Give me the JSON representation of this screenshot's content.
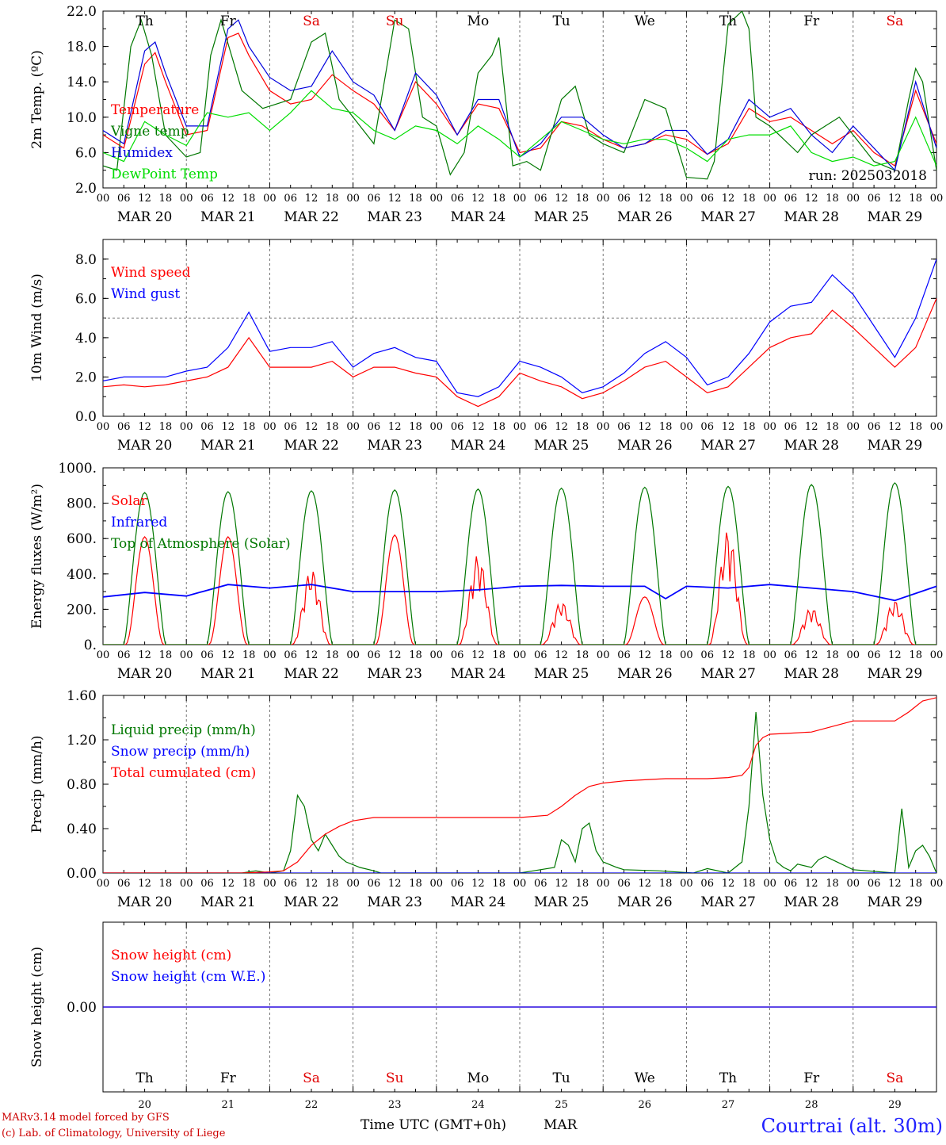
{
  "meta": {
    "run_label": "run: 2025032018",
    "credit_line1": "MARv3.14 model forced by GFS",
    "credit_line2": "(c) Lab. of Climatology, University of Liege",
    "xlabel_main": "Time UTC (GMT+0h)",
    "xlabel_month": "MAR",
    "station": "Courtrai (alt. 30m)"
  },
  "axis": {
    "hour_ticks": [
      "00",
      "06",
      "12",
      "18"
    ],
    "end_tick": "00",
    "dates": [
      "MAR 20",
      "MAR 21",
      "MAR 22",
      "MAR 23",
      "MAR 24",
      "MAR 25",
      "MAR 26",
      "MAR 27",
      "MAR 28",
      "MAR 29"
    ],
    "days": [
      {
        "label": "Th",
        "color": "#000000"
      },
      {
        "label": "Fr",
        "color": "#000000"
      },
      {
        "label": "Sa",
        "color": "#e00000"
      },
      {
        "label": "Su",
        "color": "#e00000"
      },
      {
        "label": "Mo",
        "color": "#000000"
      },
      {
        "label": "Tu",
        "color": "#000000"
      },
      {
        "label": "We",
        "color": "#000000"
      },
      {
        "label": "Th",
        "color": "#000000"
      },
      {
        "label": "Fr",
        "color": "#000000"
      },
      {
        "label": "Sa",
        "color": "#e00000"
      }
    ],
    "day_numbers": [
      "20",
      "21",
      "22",
      "23",
      "24",
      "25",
      "26",
      "27",
      "28",
      "29"
    ]
  },
  "chart_data": [
    {
      "type": "line",
      "ylabel": "2m Temp. (ºC)",
      "ylim": [
        2,
        22
      ],
      "yticks": [
        "2.0",
        "6.0",
        "10.0",
        "14.0",
        "18.0",
        "22.0"
      ],
      "ytick_values": [
        2,
        6,
        10,
        14,
        18,
        22
      ],
      "x_unit": "hours since MAR 20 00 UTC",
      "x_range": [
        0,
        240
      ],
      "series": [
        {
          "name": "Temperature",
          "color": "#ff0000",
          "x": [
            0,
            6,
            12,
            15,
            18,
            24,
            30,
            36,
            39,
            42,
            48,
            54,
            60,
            66,
            72,
            78,
            84,
            90,
            96,
            102,
            108,
            114,
            120,
            126,
            132,
            138,
            144,
            150,
            156,
            162,
            168,
            174,
            180,
            186,
            192,
            198,
            204,
            210,
            216,
            222,
            228,
            234,
            240
          ],
          "y": [
            8,
            6.5,
            16,
            17.3,
            14,
            8,
            8.5,
            19,
            19.5,
            17,
            13,
            11.5,
            12,
            14.8,
            13,
            11.5,
            8.5,
            14,
            11.5,
            8,
            11.5,
            11,
            6,
            6.5,
            9.5,
            9,
            7.5,
            6.5,
            7,
            8,
            7.5,
            5.8,
            7,
            11,
            9.5,
            10,
            8.5,
            7,
            8.5,
            6,
            4.5,
            13,
            7
          ]
        },
        {
          "name": "Vigne temp",
          "color": "#007700",
          "x": [
            0,
            4,
            8,
            11,
            14,
            18,
            24,
            28,
            31,
            34,
            37,
            40,
            46,
            54,
            60,
            64,
            68,
            72,
            78,
            84,
            88,
            92,
            96,
            100,
            104,
            108,
            110,
            112,
            114,
            118,
            122,
            126,
            132,
            136,
            140,
            144,
            150,
            156,
            162,
            168,
            174,
            176,
            180,
            184,
            186,
            188,
            192,
            200,
            204,
            208,
            212,
            216,
            222,
            228,
            232,
            234,
            236,
            238,
            240
          ],
          "y": [
            4.5,
            4,
            18,
            21,
            17,
            8,
            5.5,
            6,
            17,
            21,
            17,
            13,
            11,
            12,
            18.5,
            19.5,
            12,
            10,
            7,
            21,
            20,
            10,
            9,
            3.5,
            6,
            15,
            16,
            17,
            19,
            4.5,
            5,
            4,
            12,
            13.5,
            8,
            7,
            6,
            12,
            11,
            3.2,
            3,
            5,
            20.5,
            22,
            20,
            10,
            9,
            6,
            8,
            9,
            10,
            8,
            5,
            4,
            12,
            15.5,
            14,
            9,
            4
          ]
        },
        {
          "name": "Humidex",
          "color": "#0000dd",
          "x": [
            0,
            6,
            12,
            15,
            18,
            24,
            30,
            36,
            39,
            42,
            48,
            54,
            60,
            66,
            72,
            78,
            84,
            90,
            96,
            102,
            108,
            114,
            120,
            126,
            132,
            138,
            144,
            150,
            156,
            162,
            168,
            174,
            180,
            186,
            192,
            198,
            204,
            210,
            216,
            222,
            228,
            234,
            240
          ],
          "y": [
            8.5,
            7,
            17.5,
            18.5,
            15,
            9,
            9,
            20,
            21,
            18,
            14.5,
            13,
            13.5,
            17.5,
            14,
            12.5,
            8.5,
            15,
            12.5,
            8,
            12,
            12,
            5.5,
            7,
            10,
            10,
            8,
            6.5,
            7,
            8.5,
            8.5,
            5.8,
            7.5,
            12,
            10,
            11,
            8,
            6,
            9,
            6.5,
            4,
            14,
            6.5
          ]
        },
        {
          "name": "DewPoint Temp",
          "color": "#00dd00",
          "x": [
            0,
            6,
            12,
            18,
            24,
            30,
            36,
            42,
            48,
            54,
            60,
            66,
            72,
            78,
            84,
            90,
            96,
            102,
            108,
            114,
            120,
            126,
            132,
            138,
            144,
            150,
            156,
            162,
            168,
            174,
            180,
            186,
            192,
            198,
            204,
            210,
            216,
            222,
            228,
            234,
            240
          ],
          "y": [
            6,
            5,
            9.5,
            8,
            6.8,
            10.5,
            10,
            10.5,
            8.5,
            10.5,
            13,
            11,
            10.5,
            8.5,
            7.5,
            9,
            8.5,
            7,
            9,
            7.5,
            5.5,
            7.5,
            9.5,
            8.5,
            7.5,
            7,
            7.5,
            7.5,
            6.5,
            5,
            7.5,
            8,
            8,
            9,
            6,
            5,
            5.5,
            4.5,
            5,
            10,
            4.5
          ]
        }
      ],
      "legend": [
        "Temperature",
        "Vigne temp",
        "Humidex",
        "DewPoint Temp"
      ],
      "legend_colors": [
        "#ff0000",
        "#007700",
        "#0000dd",
        "#00dd00"
      ],
      "legend_placement": "left"
    },
    {
      "type": "line",
      "ylabel": "10m Wind (m/s)",
      "ylim": [
        0,
        9
      ],
      "yticks": [
        "0.0",
        "2.0",
        "4.0",
        "6.0",
        "8.0"
      ],
      "ytick_values": [
        0,
        2,
        4,
        6,
        8
      ],
      "reference_line": 5,
      "x_unit": "hours since MAR 20 00 UTC",
      "x_range": [
        0,
        240
      ],
      "series": [
        {
          "name": "Wind speed",
          "color": "#ff0000",
          "x": [
            0,
            6,
            12,
            18,
            24,
            30,
            36,
            42,
            48,
            54,
            60,
            66,
            72,
            78,
            84,
            90,
            96,
            102,
            108,
            114,
            120,
            126,
            132,
            138,
            144,
            150,
            156,
            162,
            168,
            174,
            180,
            186,
            192,
            198,
            204,
            210,
            216,
            222,
            228,
            234,
            240
          ],
          "y": [
            1.5,
            1.6,
            1.5,
            1.6,
            1.8,
            2,
            2.5,
            4,
            2.5,
            2.5,
            2.5,
            2.8,
            2,
            2.5,
            2.5,
            2.2,
            2,
            1,
            0.5,
            1,
            2.2,
            1.8,
            1.5,
            0.9,
            1.2,
            1.8,
            2.5,
            2.8,
            2,
            1.2,
            1.5,
            2.5,
            3.5,
            4,
            4.2,
            5.4,
            4.5,
            3.5,
            2.5,
            3.5,
            6
          ]
        },
        {
          "name": "Wind gust",
          "color": "#0000ff",
          "x": [
            0,
            6,
            12,
            18,
            24,
            30,
            36,
            42,
            48,
            54,
            60,
            66,
            72,
            78,
            84,
            90,
            96,
            102,
            108,
            114,
            120,
            126,
            132,
            138,
            144,
            150,
            156,
            162,
            168,
            174,
            180,
            186,
            192,
            198,
            204,
            210,
            216,
            222,
            228,
            234,
            240
          ],
          "y": [
            1.8,
            2,
            2,
            2,
            2.3,
            2.5,
            3.5,
            5.3,
            3.3,
            3.5,
            3.5,
            3.8,
            2.5,
            3.2,
            3.5,
            3,
            2.8,
            1.2,
            1,
            1.5,
            2.8,
            2.5,
            2,
            1.2,
            1.5,
            2.2,
            3.2,
            3.8,
            3,
            1.6,
            2,
            3.2,
            4.8,
            5.6,
            5.8,
            7.2,
            6.2,
            4.6,
            3,
            5,
            8
          ]
        }
      ],
      "legend": [
        "Wind speed",
        "Wind gust"
      ],
      "legend_colors": [
        "#ff0000",
        "#0000ff"
      ],
      "legend_placement": "left"
    },
    {
      "type": "line",
      "ylabel": "Energy fluxes (W/m²)",
      "ylim": [
        0,
        1000
      ],
      "yticks": [
        "0.",
        "200.",
        "400.",
        "600.",
        "800.",
        "1000."
      ],
      "ytick_values": [
        0,
        200,
        400,
        600,
        800,
        1000
      ],
      "x_unit": "hours since MAR 20 00 UTC",
      "x_range": [
        0,
        240
      ],
      "series": [
        {
          "name": "Solar",
          "color": "#ff0000",
          "peaks": [
            610,
            610,
            430,
            620,
            510,
            245,
            270,
            650,
            210,
            250
          ]
        },
        {
          "name": "Infrared",
          "color": "#0000ff",
          "x": [
            0,
            12,
            24,
            36,
            48,
            60,
            72,
            84,
            96,
            108,
            120,
            132,
            144,
            156,
            162,
            168,
            180,
            192,
            204,
            216,
            228,
            240
          ],
          "y": [
            270,
            295,
            275,
            340,
            320,
            340,
            300,
            300,
            300,
            310,
            330,
            335,
            330,
            330,
            260,
            330,
            320,
            340,
            320,
            300,
            250,
            330
          ]
        },
        {
          "name": "Top of Atmosphere (Solar)",
          "color": "#007700",
          "peaks": [
            860,
            865,
            870,
            875,
            880,
            885,
            890,
            895,
            905,
            915
          ]
        }
      ],
      "legend": [
        "Solar",
        "Infrared",
        "Top of Atmosphere (Solar)"
      ],
      "legend_colors": [
        "#ff0000",
        "#0000ff",
        "#007700"
      ],
      "legend_placement": "left"
    },
    {
      "type": "line",
      "ylabel": "Precip (mm/h)",
      "ylim": [
        0,
        1.6
      ],
      "yticks": [
        "0.00",
        "0.40",
        "0.80",
        "1.20",
        "1.60"
      ],
      "ytick_values": [
        0,
        0.4,
        0.8,
        1.2,
        1.6
      ],
      "x_unit": "hours since MAR 20 00 UTC",
      "x_range": [
        0,
        240
      ],
      "series": [
        {
          "name": "Liquid precip (mm/h)",
          "color": "#007700",
          "x": [
            0,
            40,
            44,
            48,
            52,
            54,
            56,
            58,
            60,
            62,
            64,
            66,
            68,
            70,
            74,
            78,
            80,
            120,
            124,
            130,
            132,
            134,
            136,
            138,
            140,
            142,
            144,
            148,
            150,
            160,
            170,
            174,
            180,
            184,
            186,
            188,
            190,
            192,
            194,
            196,
            198,
            200,
            204,
            206,
            208,
            210,
            216,
            228,
            230,
            232,
            234,
            236,
            238,
            240
          ],
          "y": [
            0,
            0,
            0.02,
            0,
            0.02,
            0.2,
            0.7,
            0.6,
            0.3,
            0.2,
            0.35,
            0.25,
            0.15,
            0.1,
            0.05,
            0.02,
            0,
            0,
            0.02,
            0.05,
            0.3,
            0.25,
            0.1,
            0.4,
            0.45,
            0.2,
            0.1,
            0.05,
            0.03,
            0.02,
            0,
            0.04,
            0,
            0.1,
            0.6,
            1.45,
            0.7,
            0.3,
            0.1,
            0.05,
            0.02,
            0.08,
            0.05,
            0.12,
            0.15,
            0.12,
            0.03,
            0,
            0.58,
            0.05,
            0.2,
            0.25,
            0.15,
            0
          ]
        },
        {
          "name": "Snow precip (mm/h)",
          "color": "#0000ff",
          "x": [
            0,
            240
          ],
          "y": [
            0,
            0
          ]
        },
        {
          "name": "Total cumulated (cm)",
          "color": "#ff0000",
          "x": [
            0,
            40,
            48,
            52,
            56,
            60,
            64,
            68,
            72,
            78,
            84,
            96,
            108,
            120,
            128,
            132,
            136,
            140,
            144,
            150,
            156,
            162,
            168,
            174,
            180,
            184,
            186,
            188,
            190,
            192,
            198,
            204,
            210,
            216,
            222,
            228,
            232,
            234,
            236,
            240
          ],
          "y": [
            0,
            0,
            0.01,
            0.02,
            0.1,
            0.25,
            0.35,
            0.42,
            0.47,
            0.5,
            0.5,
            0.5,
            0.5,
            0.5,
            0.52,
            0.6,
            0.7,
            0.78,
            0.81,
            0.83,
            0.84,
            0.85,
            0.85,
            0.85,
            0.86,
            0.88,
            0.95,
            1.15,
            1.22,
            1.25,
            1.26,
            1.27,
            1.32,
            1.37,
            1.37,
            1.37,
            1.45,
            1.5,
            1.55,
            1.58
          ]
        }
      ],
      "legend": [
        "Liquid precip (mm/h)",
        "Snow precip (mm/h)",
        "Total cumulated (cm)"
      ],
      "legend_colors": [
        "#007700",
        "#0000ff",
        "#ff0000"
      ],
      "legend_placement": "left"
    },
    {
      "type": "line",
      "ylabel": "Snow height (cm)",
      "ylim": [
        -1,
        1
      ],
      "yticks": [
        "0.00"
      ],
      "ytick_values": [
        0
      ],
      "x_unit": "hours since MAR 20 00 UTC",
      "x_range": [
        0,
        240
      ],
      "series": [
        {
          "name": "Snow height (cm)",
          "color": "#ff0000",
          "x": [
            0,
            240
          ],
          "y": [
            0,
            0
          ]
        },
        {
          "name": "Snow height (cm W.E.)",
          "color": "#0000ff",
          "x": [
            0,
            240
          ],
          "y": [
            0,
            0
          ]
        }
      ],
      "legend": [
        "Snow height (cm)",
        "Snow height (cm W.E.)"
      ],
      "legend_colors": [
        "#ff0000",
        "#0000ff"
      ],
      "legend_placement": "left"
    }
  ]
}
